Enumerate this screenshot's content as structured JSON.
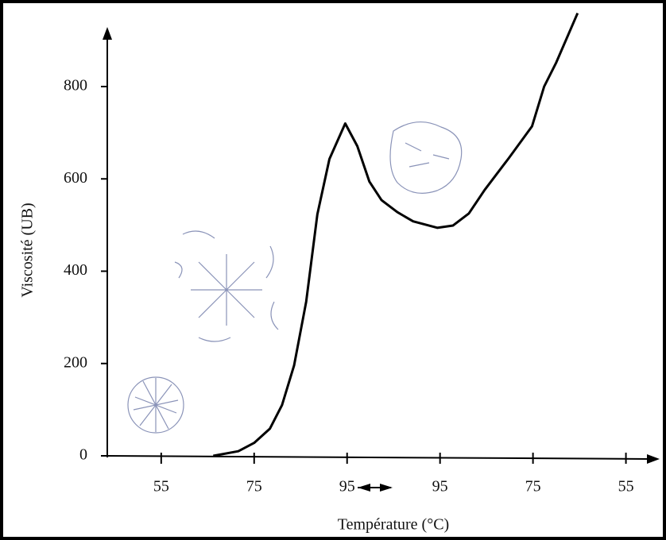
{
  "chart_data": {
    "type": "line",
    "xlabel": "Température (°C)",
    "ylabel": "Viscosité (UB)",
    "xlim": [
      -0.58,
      5.32
    ],
    "xticks": [
      {
        "value": 0,
        "label": "55"
      },
      {
        "value": 1,
        "label": "75"
      },
      {
        "value": 2,
        "label": "95"
      },
      {
        "value": 3,
        "label": "95"
      },
      {
        "value": 4,
        "label": "75"
      },
      {
        "value": 5,
        "label": "55"
      }
    ],
    "ylim": [
      0,
      960
    ],
    "yticks": [
      0,
      200,
      400,
      600,
      800
    ],
    "color": "#000000",
    "x": [
      0.56,
      0.83,
      1.0,
      1.17,
      1.3,
      1.43,
      1.56,
      1.68,
      1.81,
      1.98,
      2.11,
      2.24,
      2.37,
      2.54,
      2.71,
      2.97,
      3.14,
      3.31,
      3.48,
      3.74,
      3.99,
      4.12,
      4.25,
      4.48
    ],
    "values": [
      0,
      10,
      28,
      59,
      110,
      196,
      334,
      523,
      643,
      720,
      671,
      594,
      554,
      528,
      508,
      494,
      499,
      525,
      576,
      645,
      714,
      800,
      852,
      959
    ]
  }
}
